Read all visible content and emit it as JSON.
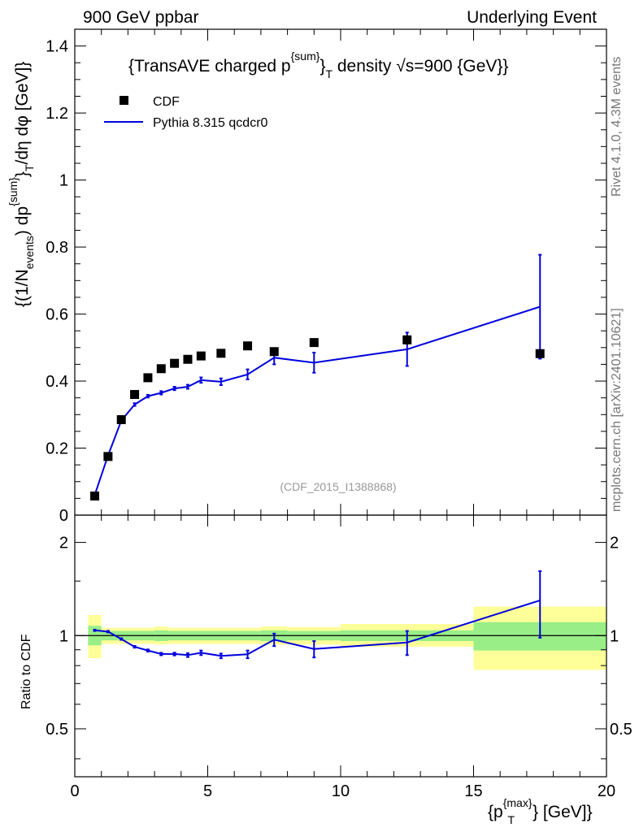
{
  "header": {
    "left": "900 GeV ppbar",
    "right": "Underlying Event"
  },
  "side_labels": {
    "rivet": "Rivet 4.1.0,  4.3M events",
    "mcplots": "mcplots.cern.ch [arXiv:2401.10621]"
  },
  "chart_data": [
    {
      "type": "scatter",
      "title": "{TransAVE charged p{sum}T density √s=900 {GeV}}",
      "ylabel": "{(1/Nevents) dp{sum}T/dη  dφ [GeV]}",
      "xlim": [
        0,
        20
      ],
      "ylim": [
        0,
        1.45
      ],
      "yticks": [
        0,
        0.2,
        0.4,
        0.6,
        0.8,
        1,
        1.2,
        1.4
      ],
      "ytick_labels": [
        "0",
        "0.2",
        "0.4",
        "0.6",
        "0.8",
        "1",
        "1.2",
        "1.4"
      ],
      "watermark": "(CDF_2015_I1388868)",
      "legend": {
        "position": "top-left",
        "entries": [
          "CDF",
          "Pythia 8.315 qcdcr0"
        ]
      },
      "series": [
        {
          "name": "CDF",
          "style": "markers",
          "color": "#000000",
          "x": [
            0.75,
            1.25,
            1.75,
            2.25,
            2.75,
            3.25,
            3.75,
            4.25,
            4.75,
            5.5,
            6.5,
            7.5,
            9.0,
            12.5,
            17.5
          ],
          "y": [
            0.057,
            0.175,
            0.285,
            0.36,
            0.41,
            0.437,
            0.453,
            0.465,
            0.475,
            0.483,
            0.505,
            0.488,
            0.515,
            0.523,
            0.482
          ],
          "yerr": [
            0.002,
            0.004,
            0.005,
            0.005,
            0.005,
            0.005,
            0.006,
            0.006,
            0.006,
            0.006,
            0.007,
            0.008,
            0.01,
            0.015,
            0.012
          ]
        },
        {
          "name": "Pythia 8.315 qcdcr0",
          "style": "line",
          "color": "#0000dd",
          "x": [
            0.75,
            1.25,
            1.75,
            2.25,
            2.75,
            3.25,
            3.75,
            4.25,
            4.75,
            5.5,
            6.5,
            7.5,
            9.0,
            12.5,
            17.5
          ],
          "y": [
            0.06,
            0.178,
            0.282,
            0.33,
            0.355,
            0.365,
            0.378,
            0.383,
            0.403,
            0.398,
            0.42,
            0.47,
            0.455,
            0.495,
            0.622
          ],
          "yerr": [
            0.002,
            0.003,
            0.004,
            0.004,
            0.004,
            0.005,
            0.005,
            0.006,
            0.008,
            0.01,
            0.015,
            0.02,
            0.03,
            0.05,
            0.155
          ]
        }
      ]
    },
    {
      "type": "line",
      "ylabel": "Ratio to CDF",
      "xlabel": "{p{max}T} [GeV]}",
      "xlim": [
        0,
        20
      ],
      "ylim": [
        0.35,
        2.45
      ],
      "yscale": "log",
      "xticks": [
        0,
        5,
        10,
        15,
        20
      ],
      "xtick_labels": [
        "0",
        "5",
        "10",
        "15",
        "20"
      ],
      "yticks": [
        0.5,
        1,
        2
      ],
      "ytick_labels": [
        "0.5",
        "1",
        "2"
      ],
      "bands": [
        {
          "x0": 0.5,
          "x1": 1.0,
          "y1_lo": 0.93,
          "y1_hi": 1.075,
          "y2_lo": 0.845,
          "y2_hi": 1.165
        },
        {
          "x0": 1.0,
          "x1": 3.0,
          "y1_lo": 0.965,
          "y1_hi": 1.035,
          "y2_lo": 0.94,
          "y2_hi": 1.06
        },
        {
          "x0": 3.0,
          "x1": 3.5,
          "y1_lo": 0.96,
          "y1_hi": 1.04,
          "y2_lo": 0.935,
          "y2_hi": 1.07
        },
        {
          "x0": 3.5,
          "x1": 7.0,
          "y1_lo": 0.965,
          "y1_hi": 1.035,
          "y2_lo": 0.94,
          "y2_hi": 1.06
        },
        {
          "x0": 7.0,
          "x1": 8.0,
          "y1_lo": 0.96,
          "y1_hi": 1.04,
          "y2_lo": 0.935,
          "y2_hi": 1.07
        },
        {
          "x0": 8.0,
          "x1": 10.0,
          "y1_lo": 0.965,
          "y1_hi": 1.035,
          "y2_lo": 0.935,
          "y2_hi": 1.065
        },
        {
          "x0": 10.0,
          "x1": 15.0,
          "y1_lo": 0.96,
          "y1_hi": 1.04,
          "y2_lo": 0.92,
          "y2_hi": 1.09
        },
        {
          "x0": 15.0,
          "x1": 20.0,
          "y1_lo": 0.895,
          "y1_hi": 1.105,
          "y2_lo": 0.775,
          "y2_hi": 1.24
        }
      ],
      "band_colors": {
        "inner": "#99ee88",
        "outer": "#ffff99"
      },
      "series": [
        {
          "name": "Pythia 8.315 qcdcr0 / CDF",
          "color": "#0000dd",
          "x": [
            0.75,
            1.25,
            1.75,
            2.25,
            2.75,
            3.25,
            3.75,
            4.25,
            4.75,
            5.5,
            6.5,
            7.5,
            9.0,
            12.5,
            17.5
          ],
          "y": [
            1.04,
            1.03,
            0.975,
            0.92,
            0.895,
            0.872,
            0.872,
            0.865,
            0.88,
            0.86,
            0.87,
            0.97,
            0.905,
            0.95,
            1.3
          ],
          "yerr": [
            0.005,
            0.006,
            0.006,
            0.006,
            0.007,
            0.008,
            0.009,
            0.012,
            0.015,
            0.015,
            0.025,
            0.045,
            0.055,
            0.085,
            0.315
          ]
        }
      ]
    }
  ]
}
